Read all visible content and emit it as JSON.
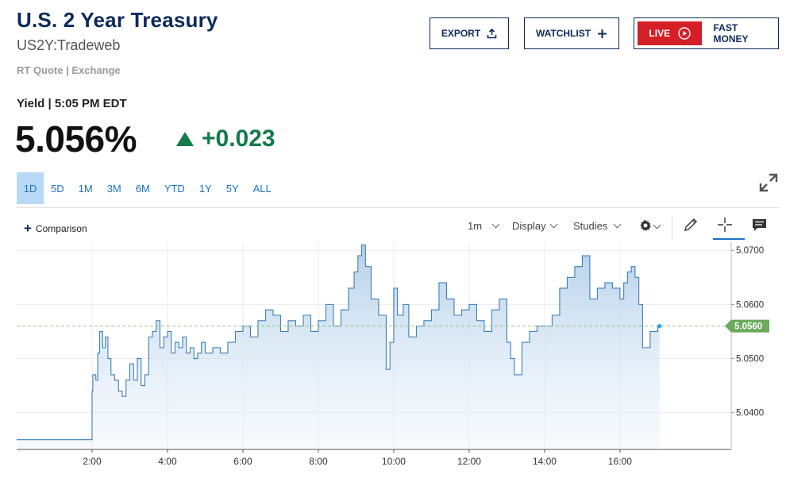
{
  "header": {
    "title": "U.S. 2 Year Treasury",
    "symbol": "US2Y:Tradeweb",
    "quote_source": "RT Quote | Exchange"
  },
  "buttons": {
    "export": "EXPORT",
    "watchlist": "WATCHLIST",
    "live": "LIVE",
    "fast_money": "FAST MONEY"
  },
  "quote": {
    "label": "Yield | 5:05 PM EDT",
    "price": "5.056%",
    "change": "+0.023",
    "change_color": "#137a4b"
  },
  "ranges": [
    "1D",
    "5D",
    "1M",
    "3M",
    "6M",
    "YTD",
    "1Y",
    "5Y",
    "ALL"
  ],
  "active_range": "1D",
  "toolbar": {
    "comparison": "Comparison",
    "interval": "1m",
    "display": "Display",
    "studies": "Studies"
  },
  "icons": [
    "upload-icon",
    "plus-icon",
    "play-circle-icon",
    "expand-icon",
    "gear-icon",
    "pencil-icon",
    "crosshair-icon",
    "comment-icon"
  ],
  "chart_data": {
    "type": "area",
    "x_ticks": [
      "2:00",
      "4:00",
      "6:00",
      "8:00",
      "10:00",
      "12:00",
      "14:00",
      "16:00"
    ],
    "y_ticks": [
      "5.0700",
      "5.0600",
      "5.0500",
      "5.0400"
    ],
    "current_value": "5.0560",
    "ylim": [
      5.0332,
      5.0715
    ],
    "xlim_hours": [
      0,
      18.95
    ],
    "reference_line": 5.056,
    "line_color": "#3b7fb8",
    "fill_color": "#cfe0f0",
    "label_color": "#6cab5e",
    "series": [
      {
        "x": [
          0,
          1.98,
          2.0,
          2.02,
          2.1,
          2.15,
          2.2,
          2.28,
          2.35,
          2.42,
          2.5,
          2.6,
          2.7,
          2.8,
          2.9,
          3.0,
          3.1,
          3.2,
          3.3,
          3.4,
          3.5,
          3.6,
          3.7,
          3.8,
          3.9,
          4.0,
          4.1,
          4.2,
          4.3,
          4.4,
          4.5,
          4.6,
          4.7,
          4.8,
          4.9,
          5.0,
          5.2,
          5.4,
          5.6,
          5.8,
          6.0,
          6.2,
          6.4,
          6.6,
          6.8,
          7.0,
          7.2,
          7.4,
          7.6,
          7.8,
          8.0,
          8.2,
          8.4,
          8.6,
          8.8,
          8.95,
          9.05,
          9.15,
          9.25,
          9.4,
          9.6,
          9.8,
          9.9,
          10.0,
          10.1,
          10.25,
          10.4,
          10.6,
          10.8,
          11.0,
          11.2,
          11.4,
          11.6,
          11.8,
          12.0,
          12.2,
          12.4,
          12.6,
          12.8,
          13.0,
          13.1,
          13.2,
          13.4,
          13.6,
          13.8,
          14.0,
          14.2,
          14.4,
          14.6,
          14.8,
          15.0,
          15.2,
          15.4,
          15.6,
          15.8,
          16.0,
          16.1,
          16.2,
          16.3,
          16.4,
          16.5,
          16.6,
          16.8,
          17.0,
          17.05
        ],
        "y": [
          5.035,
          5.035,
          5.044,
          5.047,
          5.046,
          5.051,
          5.055,
          5.052,
          5.054,
          5.05,
          5.047,
          5.046,
          5.044,
          5.043,
          5.046,
          5.049,
          5.046,
          5.05,
          5.045,
          5.047,
          5.054,
          5.055,
          5.057,
          5.052,
          5.054,
          5.055,
          5.051,
          5.053,
          5.052,
          5.054,
          5.051,
          5.052,
          5.05,
          5.051,
          5.053,
          5.051,
          5.052,
          5.051,
          5.053,
          5.055,
          5.056,
          5.054,
          5.057,
          5.059,
          5.058,
          5.055,
          5.057,
          5.056,
          5.058,
          5.055,
          5.057,
          5.06,
          5.056,
          5.059,
          5.063,
          5.066,
          5.069,
          5.071,
          5.067,
          5.061,
          5.058,
          5.048,
          5.053,
          5.063,
          5.058,
          5.06,
          5.054,
          5.056,
          5.057,
          5.059,
          5.064,
          5.061,
          5.058,
          5.059,
          5.06,
          5.057,
          5.055,
          5.059,
          5.061,
          5.053,
          5.05,
          5.047,
          5.053,
          5.055,
          5.056,
          5.056,
          5.058,
          5.063,
          5.065,
          5.067,
          5.069,
          5.061,
          5.063,
          5.064,
          5.063,
          5.061,
          5.064,
          5.066,
          5.067,
          5.065,
          5.06,
          5.052,
          5.055,
          5.056,
          5.056
        ]
      }
    ]
  }
}
